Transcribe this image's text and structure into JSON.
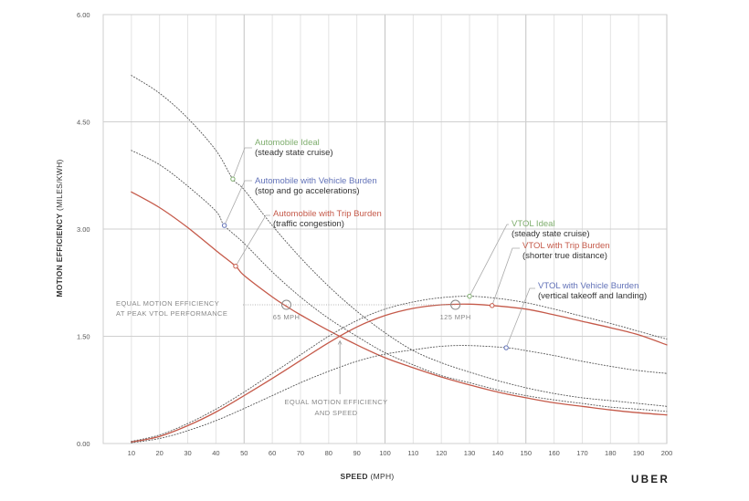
{
  "chart_data": {
    "type": "line",
    "xlabel_bold": "SPEED",
    "xlabel_rest": "(MPH)",
    "ylabel_bold": "MOTION EFFICIENCY",
    "ylabel_rest": "(MILES/KWH)",
    "xlim": [
      0,
      200
    ],
    "ylim": [
      0,
      6
    ],
    "x_ticks": [
      10,
      20,
      30,
      40,
      50,
      60,
      70,
      80,
      90,
      100,
      110,
      120,
      130,
      140,
      150,
      160,
      170,
      180,
      190,
      200
    ],
    "y_ticks": [
      0,
      1.5,
      3,
      4.5,
      6
    ],
    "y_tick_labels": [
      "0.00",
      "1.50",
      "3.00",
      "4.50",
      "6.00"
    ],
    "grid": true,
    "series": [
      {
        "name": "Automobile Ideal",
        "color": "#a0a0a0",
        "style": "dotted",
        "x": [
          10,
          20,
          30,
          40,
          46,
          50,
          60,
          70,
          80,
          90,
          100,
          110,
          120,
          130,
          140,
          150,
          160,
          170,
          180,
          190,
          200
        ],
        "y": [
          5.15,
          4.9,
          4.55,
          4.1,
          3.7,
          3.55,
          3.05,
          2.6,
          2.2,
          1.85,
          1.55,
          1.3,
          1.13,
          1.0,
          0.88,
          0.78,
          0.7,
          0.64,
          0.6,
          0.56,
          0.52
        ]
      },
      {
        "name": "Automobile with Vehicle Burden",
        "color": "#6272b8",
        "style": "dotted",
        "x": [
          10,
          20,
          30,
          40,
          43,
          50,
          60,
          70,
          80,
          90,
          100,
          110,
          120,
          130,
          140,
          150,
          160,
          170,
          180,
          190,
          200
        ],
        "y": [
          4.1,
          3.9,
          3.6,
          3.25,
          3.05,
          2.8,
          2.4,
          2.05,
          1.75,
          1.5,
          1.27,
          1.1,
          0.95,
          0.85,
          0.75,
          0.67,
          0.61,
          0.56,
          0.51,
          0.48,
          0.45
        ]
      },
      {
        "name": "Automobile with Trip Burden",
        "color": "#c55a4a",
        "style": "solid",
        "x": [
          10,
          20,
          30,
          40,
          47,
          50,
          60,
          65,
          70,
          80,
          90,
          100,
          110,
          120,
          130,
          140,
          150,
          160,
          170,
          180,
          190,
          200
        ],
        "y": [
          3.52,
          3.3,
          3.02,
          2.7,
          2.48,
          2.35,
          2.05,
          1.92,
          1.8,
          1.58,
          1.38,
          1.2,
          1.06,
          0.93,
          0.82,
          0.72,
          0.64,
          0.57,
          0.52,
          0.47,
          0.43,
          0.4
        ]
      },
      {
        "name": "VTOL Ideal",
        "color": "#a0a0a0",
        "style": "dotted",
        "x": [
          10,
          20,
          30,
          40,
          50,
          60,
          70,
          80,
          90,
          100,
          110,
          120,
          130,
          140,
          150,
          160,
          170,
          180,
          190,
          200
        ],
        "y": [
          0.03,
          0.12,
          0.28,
          0.48,
          0.72,
          0.98,
          1.24,
          1.5,
          1.72,
          1.88,
          1.98,
          2.04,
          2.06,
          2.03,
          1.97,
          1.88,
          1.78,
          1.68,
          1.57,
          1.46
        ]
      },
      {
        "name": "VTOL with Trip Burden",
        "color": "#c55a4a",
        "style": "solid",
        "x": [
          10,
          20,
          30,
          40,
          50,
          60,
          70,
          80,
          90,
          100,
          110,
          120,
          130,
          138,
          150,
          160,
          170,
          180,
          190,
          200
        ],
        "y": [
          0.02,
          0.1,
          0.25,
          0.44,
          0.67,
          0.91,
          1.16,
          1.41,
          1.63,
          1.79,
          1.89,
          1.94,
          1.95,
          1.93,
          1.88,
          1.8,
          1.71,
          1.62,
          1.52,
          1.38
        ]
      },
      {
        "name": "VTOL with Vehicle Burden",
        "color": "#6272b8",
        "style": "dotted",
        "x": [
          10,
          20,
          30,
          40,
          50,
          60,
          70,
          80,
          90,
          100,
          110,
          120,
          130,
          143,
          150,
          160,
          170,
          180,
          190,
          200
        ],
        "y": [
          0.01,
          0.07,
          0.18,
          0.32,
          0.49,
          0.67,
          0.85,
          1.01,
          1.15,
          1.25,
          1.31,
          1.36,
          1.37,
          1.34,
          1.3,
          1.23,
          1.15,
          1.08,
          1.02,
          0.98
        ]
      }
    ],
    "annotations": [
      {
        "title": "Automobile Ideal",
        "subtitle": "(steady state cruise)",
        "color": "#7fae6e",
        "x": 46,
        "y": 3.7
      },
      {
        "title": "Automobile with Vehicle Burden",
        "subtitle": "(stop and go accelerations)",
        "color": "#6272b8",
        "x": 43,
        "y": 3.05
      },
      {
        "title": "Automobile with Trip Burden",
        "subtitle": "(traffic congestion)",
        "color": "#c55a4a",
        "x": 47,
        "y": 2.48
      },
      {
        "title": "VTOL Ideal",
        "subtitle": "(steady state cruise)",
        "color": "#7fae6e",
        "x": 130,
        "y": 2.06
      },
      {
        "title": "VTOL with Trip Burden",
        "subtitle": "(shorter true distance)",
        "color": "#c55a4a",
        "x": 138,
        "y": 1.93
      },
      {
        "title": "VTOL with Vehicle Burden",
        "subtitle": "(vertical takeoff and landing)",
        "color": "#6272b8",
        "x": 143,
        "y": 1.34
      }
    ],
    "equal_peak": {
      "label_line1": "EQUAL MOTION EFFICIENCY",
      "label_line2": "AT PEAK VTOL PERFORMANCE",
      "y": 1.94,
      "points": [
        {
          "x": 65,
          "label": "65 MPH"
        },
        {
          "x": 125,
          "label": "125 MPH"
        }
      ]
    },
    "equal_speed": {
      "label_line1": "EQUAL MOTION EFFICIENCY",
      "label_line2": "AND SPEED",
      "x": 84,
      "y": 1.5
    }
  },
  "brand": "UBER"
}
